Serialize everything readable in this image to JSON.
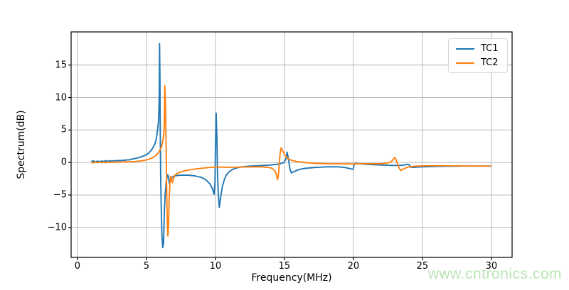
{
  "watermark": {
    "text": "www.cntronics.com",
    "color": "#b9e4b4"
  },
  "chart_data": {
    "type": "line",
    "title": "",
    "xlabel": "Frequency(MHz)",
    "ylabel": "Spectrum(dB)",
    "xlim": [
      -0.46,
      31.5
    ],
    "ylim": [
      -14.6,
      20.1
    ],
    "xticks": [
      0,
      5,
      10,
      15,
      20,
      25,
      30
    ],
    "yticks": [
      -10,
      -5,
      0,
      5,
      10,
      15
    ],
    "grid": true,
    "grid_color": "#b4b4b4",
    "spine_color": "#000000",
    "legend_position": "upper right",
    "series": [
      {
        "name": "TC1",
        "color": "#1f77b4",
        "points": [
          [
            1.0,
            0.15
          ],
          [
            1.15,
            0.25
          ],
          [
            1.3,
            0.1
          ],
          [
            1.45,
            0.22
          ],
          [
            1.6,
            0.12
          ],
          [
            1.75,
            0.24
          ],
          [
            1.9,
            0.15
          ],
          [
            2.05,
            0.27
          ],
          [
            2.2,
            0.18
          ],
          [
            2.35,
            0.3
          ],
          [
            2.5,
            0.2
          ],
          [
            2.65,
            0.3
          ],
          [
            2.8,
            0.25
          ],
          [
            2.95,
            0.33
          ],
          [
            3.1,
            0.27
          ],
          [
            3.25,
            0.36
          ],
          [
            3.4,
            0.32
          ],
          [
            3.55,
            0.42
          ],
          [
            3.7,
            0.38
          ],
          [
            3.85,
            0.48
          ],
          [
            4.0,
            0.55
          ],
          [
            4.15,
            0.6
          ],
          [
            4.3,
            0.68
          ],
          [
            4.45,
            0.76
          ],
          [
            4.6,
            0.85
          ],
          [
            4.75,
            0.98
          ],
          [
            4.9,
            1.1
          ],
          [
            5.0,
            1.2
          ],
          [
            5.15,
            1.45
          ],
          [
            5.3,
            1.75
          ],
          [
            5.45,
            2.2
          ],
          [
            5.6,
            2.8
          ],
          [
            5.7,
            3.5
          ],
          [
            5.8,
            4.9
          ],
          [
            5.87,
            6.3
          ],
          [
            5.9,
            7.8
          ],
          [
            5.93,
            11.0
          ],
          [
            5.95,
            18.3
          ],
          [
            5.98,
            13.0
          ],
          [
            6.0,
            5.0
          ],
          [
            6.03,
            -2.0
          ],
          [
            6.07,
            -7.0
          ],
          [
            6.12,
            -11.0
          ],
          [
            6.18,
            -13.1
          ],
          [
            6.24,
            -12.3
          ],
          [
            6.3,
            -7.5
          ],
          [
            6.36,
            -4.8
          ],
          [
            6.42,
            -3.3
          ],
          [
            6.48,
            -2.4
          ],
          [
            6.54,
            -1.9
          ],
          [
            6.6,
            -2.2
          ],
          [
            6.66,
            -3.3
          ],
          [
            6.72,
            -2.8
          ],
          [
            6.8,
            -2.4
          ],
          [
            6.95,
            -2.15
          ],
          [
            7.2,
            -2.0
          ],
          [
            7.5,
            -1.95
          ],
          [
            8.0,
            -1.95
          ],
          [
            8.5,
            -2.05
          ],
          [
            9.0,
            -2.3
          ],
          [
            9.3,
            -2.65
          ],
          [
            9.6,
            -3.3
          ],
          [
            9.8,
            -4.1
          ],
          [
            9.9,
            -4.9
          ],
          [
            9.97,
            -3.0
          ],
          [
            10.0,
            2.0
          ],
          [
            10.05,
            7.6
          ],
          [
            10.1,
            4.0
          ],
          [
            10.15,
            -1.5
          ],
          [
            10.2,
            -4.5
          ],
          [
            10.28,
            -6.9
          ],
          [
            10.38,
            -5.3
          ],
          [
            10.5,
            -3.7
          ],
          [
            10.65,
            -2.6
          ],
          [
            10.8,
            -1.9
          ],
          [
            11.0,
            -1.4
          ],
          [
            11.3,
            -1.0
          ],
          [
            11.6,
            -0.8
          ],
          [
            12.0,
            -0.65
          ],
          [
            12.5,
            -0.55
          ],
          [
            13.0,
            -0.5
          ],
          [
            13.5,
            -0.45
          ],
          [
            14.0,
            -0.38
          ],
          [
            14.4,
            -0.28
          ],
          [
            14.7,
            -0.18
          ],
          [
            14.95,
            -0.02
          ],
          [
            15.1,
            0.5
          ],
          [
            15.2,
            1.6
          ],
          [
            15.3,
            0.4
          ],
          [
            15.4,
            -1.0
          ],
          [
            15.5,
            -1.6
          ],
          [
            15.65,
            -1.45
          ],
          [
            15.85,
            -1.25
          ],
          [
            16.1,
            -1.05
          ],
          [
            16.5,
            -0.9
          ],
          [
            17.0,
            -0.8
          ],
          [
            17.5,
            -0.72
          ],
          [
            18.0,
            -0.68
          ],
          [
            18.5,
            -0.65
          ],
          [
            19.0,
            -0.68
          ],
          [
            19.4,
            -0.78
          ],
          [
            19.7,
            -0.92
          ],
          [
            19.9,
            -1.02
          ],
          [
            19.98,
            -1.05
          ],
          [
            20.05,
            -0.3
          ],
          [
            20.15,
            -0.12
          ],
          [
            20.4,
            -0.18
          ],
          [
            20.8,
            -0.25
          ],
          [
            21.2,
            -0.3
          ],
          [
            21.8,
            -0.37
          ],
          [
            22.4,
            -0.42
          ],
          [
            23.0,
            -0.45
          ],
          [
            23.4,
            -0.44
          ],
          [
            23.7,
            -0.38
          ],
          [
            23.9,
            -0.27
          ],
          [
            24.05,
            -0.35
          ],
          [
            24.15,
            -0.72
          ],
          [
            24.4,
            -0.75
          ],
          [
            24.7,
            -0.7
          ],
          [
            25.0,
            -0.67
          ],
          [
            25.5,
            -0.63
          ],
          [
            26.0,
            -0.6
          ],
          [
            26.5,
            -0.58
          ],
          [
            27.0,
            -0.57
          ],
          [
            27.5,
            -0.56
          ],
          [
            28.0,
            -0.55
          ],
          [
            28.5,
            -0.55
          ],
          [
            29.0,
            -0.55
          ],
          [
            29.5,
            -0.55
          ],
          [
            30.0,
            -0.55
          ]
        ]
      },
      {
        "name": "TC2",
        "color": "#ff7f0e",
        "points": [
          [
            1.0,
            0.05
          ],
          [
            1.15,
            -0.06
          ],
          [
            1.3,
            0.08
          ],
          [
            1.45,
            -0.03
          ],
          [
            1.6,
            0.07
          ],
          [
            1.75,
            -0.04
          ],
          [
            1.9,
            0.06
          ],
          [
            2.05,
            -0.02
          ],
          [
            2.2,
            0.08
          ],
          [
            2.35,
            0.0
          ],
          [
            2.5,
            0.09
          ],
          [
            2.65,
            0.02
          ],
          [
            2.8,
            0.1
          ],
          [
            2.95,
            0.04
          ],
          [
            3.1,
            0.1
          ],
          [
            3.3,
            0.05
          ],
          [
            3.5,
            0.12
          ],
          [
            3.7,
            0.08
          ],
          [
            3.9,
            0.13
          ],
          [
            4.1,
            0.12
          ],
          [
            4.3,
            0.17
          ],
          [
            4.5,
            0.22
          ],
          [
            4.7,
            0.28
          ],
          [
            4.9,
            0.36
          ],
          [
            5.1,
            0.46
          ],
          [
            5.3,
            0.6
          ],
          [
            5.5,
            0.8
          ],
          [
            5.7,
            1.1
          ],
          [
            5.9,
            1.6
          ],
          [
            6.05,
            2.2
          ],
          [
            6.15,
            2.9
          ],
          [
            6.25,
            4.2
          ],
          [
            6.3,
            6.0
          ],
          [
            6.33,
            11.8
          ],
          [
            6.38,
            9.0
          ],
          [
            6.42,
            3.0
          ],
          [
            6.46,
            -3.0
          ],
          [
            6.5,
            -8.0
          ],
          [
            6.55,
            -11.3
          ],
          [
            6.6,
            -9.5
          ],
          [
            6.65,
            -5.5
          ],
          [
            6.7,
            -3.2
          ],
          [
            6.76,
            -2.1
          ],
          [
            6.82,
            -2.6
          ],
          [
            6.88,
            -3.1
          ],
          [
            6.94,
            -2.5
          ],
          [
            7.05,
            -1.95
          ],
          [
            7.25,
            -1.65
          ],
          [
            7.5,
            -1.45
          ],
          [
            7.8,
            -1.25
          ],
          [
            8.2,
            -1.1
          ],
          [
            8.6,
            -0.98
          ],
          [
            9.0,
            -0.88
          ],
          [
            9.5,
            -0.78
          ],
          [
            10.0,
            -0.7
          ],
          [
            10.5,
            -0.72
          ],
          [
            11.0,
            -0.73
          ],
          [
            11.5,
            -0.72
          ],
          [
            12.0,
            -0.7
          ],
          [
            12.5,
            -0.68
          ],
          [
            13.0,
            -0.66
          ],
          [
            13.4,
            -0.68
          ],
          [
            13.8,
            -0.74
          ],
          [
            14.1,
            -0.88
          ],
          [
            14.3,
            -1.25
          ],
          [
            14.42,
            -1.8
          ],
          [
            14.5,
            -2.65
          ],
          [
            14.56,
            -2.0
          ],
          [
            14.62,
            -0.4
          ],
          [
            14.68,
            1.3
          ],
          [
            14.75,
            2.25
          ],
          [
            14.85,
            1.9
          ],
          [
            15.0,
            1.25
          ],
          [
            15.2,
            0.68
          ],
          [
            15.45,
            0.38
          ],
          [
            15.7,
            0.24
          ],
          [
            16.0,
            0.12
          ],
          [
            16.4,
            0.02
          ],
          [
            16.8,
            -0.06
          ],
          [
            17.2,
            -0.12
          ],
          [
            17.7,
            -0.16
          ],
          [
            18.2,
            -0.19
          ],
          [
            19.0,
            -0.21
          ],
          [
            20.0,
            -0.21
          ],
          [
            21.0,
            -0.2
          ],
          [
            22.0,
            -0.18
          ],
          [
            22.4,
            -0.12
          ],
          [
            22.7,
            0.08
          ],
          [
            22.9,
            0.5
          ],
          [
            23.0,
            0.78
          ],
          [
            23.1,
            0.45
          ],
          [
            23.22,
            -0.4
          ],
          [
            23.35,
            -1.0
          ],
          [
            23.45,
            -1.22
          ],
          [
            23.6,
            -1.02
          ],
          [
            23.8,
            -0.82
          ],
          [
            24.0,
            -0.68
          ],
          [
            24.4,
            -0.58
          ],
          [
            24.8,
            -0.53
          ],
          [
            25.3,
            -0.5
          ],
          [
            26.0,
            -0.49
          ],
          [
            26.8,
            -0.5
          ],
          [
            27.6,
            -0.51
          ],
          [
            28.4,
            -0.53
          ],
          [
            29.2,
            -0.55
          ],
          [
            30.0,
            -0.56
          ]
        ]
      }
    ]
  }
}
